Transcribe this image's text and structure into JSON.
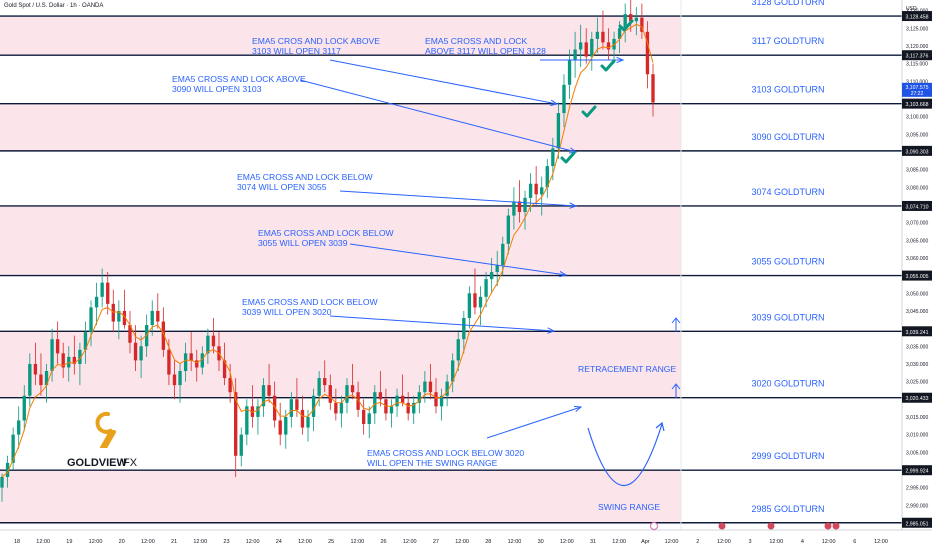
{
  "header": {
    "title": "Gold Spot / U.S. Dollar · 1h · OANDA",
    "currency": "USD"
  },
  "logo": {
    "text": "GOLDVIEW",
    "suffix": "FX"
  },
  "colors": {
    "zone": "#fbe4ea",
    "line": "#0d1a3a",
    "label": "#2962ff",
    "up": "#089981",
    "down": "#d62828",
    "ema": "#f57c00",
    "check": "#089981"
  },
  "chart_data": {
    "type": "candlestick",
    "ylim": [
      2983,
      3133
    ],
    "levels": [
      {
        "value": 3128.458,
        "tag": "3,128.458",
        "label": "3128 GOLDTURN"
      },
      {
        "value": 3117.376,
        "tag": "3,117.376",
        "label": "3117 GOLDTURN"
      },
      {
        "value": 3103.668,
        "tag": "3,103.668",
        "label": "3103 GOLDTURN"
      },
      {
        "value": 3090.303,
        "tag": "3,090.303",
        "label": "3090 GOLDTURN"
      },
      {
        "value": 3074.71,
        "tag": "3,074.710",
        "label": "3074 GOLDTURN"
      },
      {
        "value": 3055.005,
        "tag": "3,055.005",
        "label": "3055 GOLDTURN"
      },
      {
        "value": 3039.241,
        "tag": "3,039.241",
        "label": "3039 GOLDTURN"
      },
      {
        "value": 3020.433,
        "tag": "3,020.433",
        "label": "3020 GOLDTURN"
      },
      {
        "value": 2999.924,
        "tag": "2,999.924",
        "label": "2999 GOLDTURN"
      },
      {
        "value": 2985.051,
        "tag": "2,985.051",
        "label": "2985 GOLDTURN"
      }
    ],
    "shaded_zones": [
      [
        3117.376,
        3128.458
      ],
      [
        3090.303,
        3103.668
      ],
      [
        3055.005,
        3074.71
      ],
      [
        3020.433,
        3039.241
      ],
      [
        2985.051,
        2999.924
      ]
    ],
    "price_tag": {
      "value": 3107.575,
      "tag": "3,107.575",
      "sub": "27:22"
    },
    "yticks": [
      3130,
      3125,
      3120,
      3115,
      3110,
      3100,
      3095,
      3085,
      3080,
      3070,
      3065,
      3060,
      3050,
      3045,
      3035,
      3030,
      3025,
      3015,
      3010,
      3005,
      2995,
      2990
    ],
    "ytick_labels": [
      "3,130.000",
      "3,125.000",
      "3,120.000",
      "3,115.000",
      "3,110.000",
      "3,100.000",
      "3,095.000",
      "3,085.000",
      "3,080.000",
      "3,070.000",
      "3,065.000",
      "3,060.000",
      "3,050.000",
      "3,045.000",
      "3,035.000",
      "3,030.000",
      "3,025.000",
      "3,015.000",
      "3,010.000",
      "3,005.000",
      "2,995.000",
      "2,990.000"
    ],
    "xticks": [
      "18",
      "12:00",
      "19",
      "12:00",
      "20",
      "12:00",
      "21",
      "12:00",
      "23",
      "12:00",
      "24",
      "12:00",
      "25",
      "12:00",
      "26",
      "12:00",
      "27",
      "12:00",
      "28",
      "12:00",
      "30",
      "12:00",
      "31",
      "12:00",
      "Apr",
      "12:00",
      "2",
      "12:00",
      "3",
      "12:00",
      "4",
      "12:00",
      "6",
      "12:00"
    ],
    "candles": [
      [
        2995.0,
        2999.0,
        2991.0,
        2998.0
      ],
      [
        2998.0,
        3004.0,
        2995.0,
        3002.0
      ],
      [
        3002.0,
        3012.0,
        3000.0,
        3010.0
      ],
      [
        3010.0,
        3018.0,
        3006.0,
        3014.0
      ],
      [
        3014.0,
        3024.0,
        3011.0,
        3021.0
      ],
      [
        3021.0,
        3033.0,
        3018.0,
        3030.0
      ],
      [
        3030.0,
        3036.0,
        3024.0,
        3027.0
      ],
      [
        3027.0,
        3033.0,
        3021.0,
        3024.0
      ],
      [
        3024.0,
        3030.0,
        3019.0,
        3028.0
      ],
      [
        3028.0,
        3040.0,
        3025.0,
        3037.0
      ],
      [
        3037.0,
        3042.0,
        3030.0,
        3033.0
      ],
      [
        3033.0,
        3036.0,
        3026.0,
        3029.0
      ],
      [
        3029.0,
        3035.0,
        3025.0,
        3032.0
      ],
      [
        3032.0,
        3038.0,
        3027.0,
        3030.0
      ],
      [
        3030.0,
        3036.0,
        3024.0,
        3034.0
      ],
      [
        3034.0,
        3042.0,
        3030.0,
        3039.0
      ],
      [
        3039.0,
        3048.0,
        3035.0,
        3046.0
      ],
      [
        3046.0,
        3053.0,
        3041.0,
        3049.0
      ],
      [
        3049.0,
        3057.0,
        3046.0,
        3053.0
      ],
      [
        3053.0,
        3056.0,
        3044.0,
        3047.0
      ],
      [
        3047.0,
        3051.0,
        3039.0,
        3042.0
      ],
      [
        3042.0,
        3048.0,
        3037.0,
        3045.0
      ],
      [
        3045.0,
        3051.0,
        3040.0,
        3041.0
      ],
      [
        3041.0,
        3045.0,
        3033.0,
        3036.0
      ],
      [
        3036.0,
        3041.0,
        3028.0,
        3031.0
      ],
      [
        3031.0,
        3038.0,
        3026.0,
        3035.0
      ],
      [
        3035.0,
        3044.0,
        3032.0,
        3041.0
      ],
      [
        3041.0,
        3048.0,
        3038.0,
        3045.0
      ],
      [
        3045.0,
        3050.0,
        3040.0,
        3042.0
      ],
      [
        3042.0,
        3046.0,
        3032.0,
        3034.0
      ],
      [
        3034.0,
        3037.0,
        3024.0,
        3027.0
      ],
      [
        3027.0,
        3031.0,
        3020.0,
        3024.0
      ],
      [
        3024.0,
        3030.0,
        3019.0,
        3028.0
      ],
      [
        3028.0,
        3036.0,
        3025.0,
        3033.0
      ],
      [
        3033.0,
        3039.0,
        3028.0,
        3031.0
      ],
      [
        3031.0,
        3034.0,
        3025.0,
        3029.0
      ],
      [
        3029.0,
        3035.0,
        3027.0,
        3033.0
      ],
      [
        3033.0,
        3040.0,
        3030.0,
        3038.0
      ],
      [
        3038.0,
        3043.0,
        3033.0,
        3035.0
      ],
      [
        3035.0,
        3039.0,
        3028.0,
        3031.0
      ],
      [
        3031.0,
        3036.0,
        3024.0,
        3026.0
      ],
      [
        3026.0,
        3030.0,
        3019.0,
        3022.0
      ],
      [
        3022.0,
        3026.0,
        2998.0,
        3004.0
      ],
      [
        3004.0,
        3012.0,
        3001.0,
        3010.0
      ],
      [
        3010.0,
        3020.0,
        3007.0,
        3018.0
      ],
      [
        3018.0,
        3024.0,
        3012.0,
        3015.0
      ],
      [
        3015.0,
        3020.0,
        3010.0,
        3018.0
      ],
      [
        3018.0,
        3026.0,
        3015.0,
        3024.0
      ],
      [
        3024.0,
        3030.0,
        3019.0,
        3021.0
      ],
      [
        3021.0,
        3025.0,
        3012.0,
        3014.0
      ],
      [
        3014.0,
        3019.0,
        3007.0,
        3010.0
      ],
      [
        3010.0,
        3017.0,
        3006.0,
        3015.0
      ],
      [
        3015.0,
        3022.0,
        3012.0,
        3020.0
      ],
      [
        3020.0,
        3026.0,
        3015.0,
        3017.0
      ],
      [
        3017.0,
        3021.0,
        3010.0,
        3012.0
      ],
      [
        3012.0,
        3017.0,
        3008.0,
        3015.0
      ],
      [
        3015.0,
        3023.0,
        3011.0,
        3021.0
      ],
      [
        3021.0,
        3028.0,
        3018.0,
        3026.0
      ],
      [
        3026.0,
        3031.0,
        3022.0,
        3024.0
      ],
      [
        3024.0,
        3027.0,
        3017.0,
        3019.0
      ],
      [
        3019.0,
        3023.0,
        3014.0,
        3016.0
      ],
      [
        3016.0,
        3021.0,
        3012.0,
        3019.0
      ],
      [
        3019.0,
        3026.0,
        3016.0,
        3024.0
      ],
      [
        3024.0,
        3030.0,
        3020.0,
        3022.0
      ],
      [
        3022.0,
        3025.0,
        3015.0,
        3017.0
      ],
      [
        3017.0,
        3020.0,
        3010.0,
        3013.0
      ],
      [
        3013.0,
        3018.0,
        3009.0,
        3016.0
      ],
      [
        3016.0,
        3024.0,
        3013.0,
        3022.0
      ],
      [
        3022.0,
        3028.0,
        3018.0,
        3020.0
      ],
      [
        3020.0,
        3023.0,
        3014.0,
        3016.0
      ],
      [
        3016.0,
        3020.0,
        3012.0,
        3018.0
      ],
      [
        3018.0,
        3023.0,
        3015.0,
        3021.0
      ],
      [
        3021.0,
        3027.0,
        3018.0,
        3019.0
      ],
      [
        3019.0,
        3022.0,
        3014.0,
        3016.0
      ],
      [
        3016.0,
        3021.0,
        3013.0,
        3019.0
      ],
      [
        3019.0,
        3024.0,
        3016.0,
        3022.0
      ],
      [
        3022.0,
        3028.0,
        3019.0,
        3025.0
      ],
      [
        3025.0,
        3030.0,
        3020.0,
        3022.0
      ],
      [
        3022.0,
        3026.0,
        3016.0,
        3018.0
      ],
      [
        3018.0,
        3023.0,
        3014.0,
        3021.0
      ],
      [
        3021.0,
        3027.0,
        3018.0,
        3025.0
      ],
      [
        3025.0,
        3033.0,
        3022.0,
        3031.0
      ],
      [
        3031.0,
        3039.0,
        3028.0,
        3037.0
      ],
      [
        3037.0,
        3045.0,
        3033.0,
        3043.0
      ],
      [
        3043.0,
        3052.0,
        3040.0,
        3050.0
      ],
      [
        3050.0,
        3057.0,
        3044.0,
        3046.0
      ],
      [
        3046.0,
        3052.0,
        3041.0,
        3049.0
      ],
      [
        3049.0,
        3056.0,
        3046.0,
        3054.0
      ],
      [
        3054.0,
        3060.0,
        3050.0,
        3056.0
      ],
      [
        3056.0,
        3062.0,
        3052.0,
        3058.0
      ],
      [
        3058.0,
        3066.0,
        3055.0,
        3064.0
      ],
      [
        3064.0,
        3074.0,
        3061.0,
        3072.0
      ],
      [
        3072.0,
        3080.0,
        3068.0,
        3076.0
      ],
      [
        3076.0,
        3082.0,
        3070.0,
        3073.0
      ],
      [
        3073.0,
        3079.0,
        3068.0,
        3077.0
      ],
      [
        3077.0,
        3084.0,
        3073.0,
        3081.0
      ],
      [
        3081.0,
        3086.0,
        3075.0,
        3078.0
      ],
      [
        3078.0,
        3083.0,
        3072.0,
        3080.0
      ],
      [
        3080.0,
        3088.0,
        3077.0,
        3086.0
      ],
      [
        3086.0,
        3094.0,
        3082.0,
        3091.0
      ],
      [
        3091.0,
        3104.0,
        3088.0,
        3101.0
      ],
      [
        3101.0,
        3112.0,
        3097.0,
        3109.0
      ],
      [
        3109.0,
        3119.0,
        3105.0,
        3116.0
      ],
      [
        3116.0,
        3124.0,
        3111.0,
        3119.0
      ],
      [
        3119.0,
        3126.0,
        3114.0,
        3121.0
      ],
      [
        3121.0,
        3125.0,
        3115.0,
        3117.0
      ],
      [
        3117.0,
        3124.0,
        3113.0,
        3122.0
      ],
      [
        3122.0,
        3128.0,
        3118.0,
        3124.0
      ],
      [
        3124.0,
        3130.0,
        3119.0,
        3121.0
      ],
      [
        3121.0,
        3125.0,
        3116.0,
        3119.0
      ],
      [
        3119.0,
        3124.0,
        3115.0,
        3122.0
      ],
      [
        3122.0,
        3127.0,
        3118.0,
        3125.0
      ],
      [
        3125.0,
        3132.0,
        3121.0,
        3129.0
      ],
      [
        3129.0,
        3133.0,
        3124.0,
        3127.0
      ],
      [
        3127.0,
        3131.0,
        3123.0,
        3128.0
      ],
      [
        3128.0,
        3132.0,
        3122.0,
        3124.0
      ],
      [
        3124.0,
        3127.0,
        3108.0,
        3112.0
      ],
      [
        3112.0,
        3115.0,
        3100.0,
        3104.0
      ]
    ]
  },
  "annotations": [
    {
      "lines": [
        "EMA5 CROS AND LOCK ABOVE",
        "3103 WILL OPEN 3117"
      ]
    },
    {
      "lines": [
        "EMA5 CROSS AND LOCK",
        "ABOVE 3117 WILL OPEN 3128"
      ]
    },
    {
      "lines": [
        "EMA5 CROSS AND LOCK ABOVE",
        "3090 WILL OPEN 3103"
      ]
    },
    {
      "lines": [
        "EMA5 CROSS AND LOCK BELOW",
        "3074 WILL OPEN 3055"
      ]
    },
    {
      "lines": [
        "EMA5 CROSS AND LOCK BELOW",
        "3055 WILL OPEN 3039"
      ]
    },
    {
      "lines": [
        "EMA5 CROSS AND LOCK BELOW",
        "3039 WILL OPEN 3020"
      ]
    },
    {
      "lines": [
        "EMA5 CROSS AND LOCK BELOW 3020",
        "WILL OPEN THE SWING RANGE"
      ]
    },
    {
      "lines": [
        "RETRACEMENT RANGE"
      ]
    },
    {
      "lines": [
        "SWING RANGE"
      ]
    }
  ]
}
